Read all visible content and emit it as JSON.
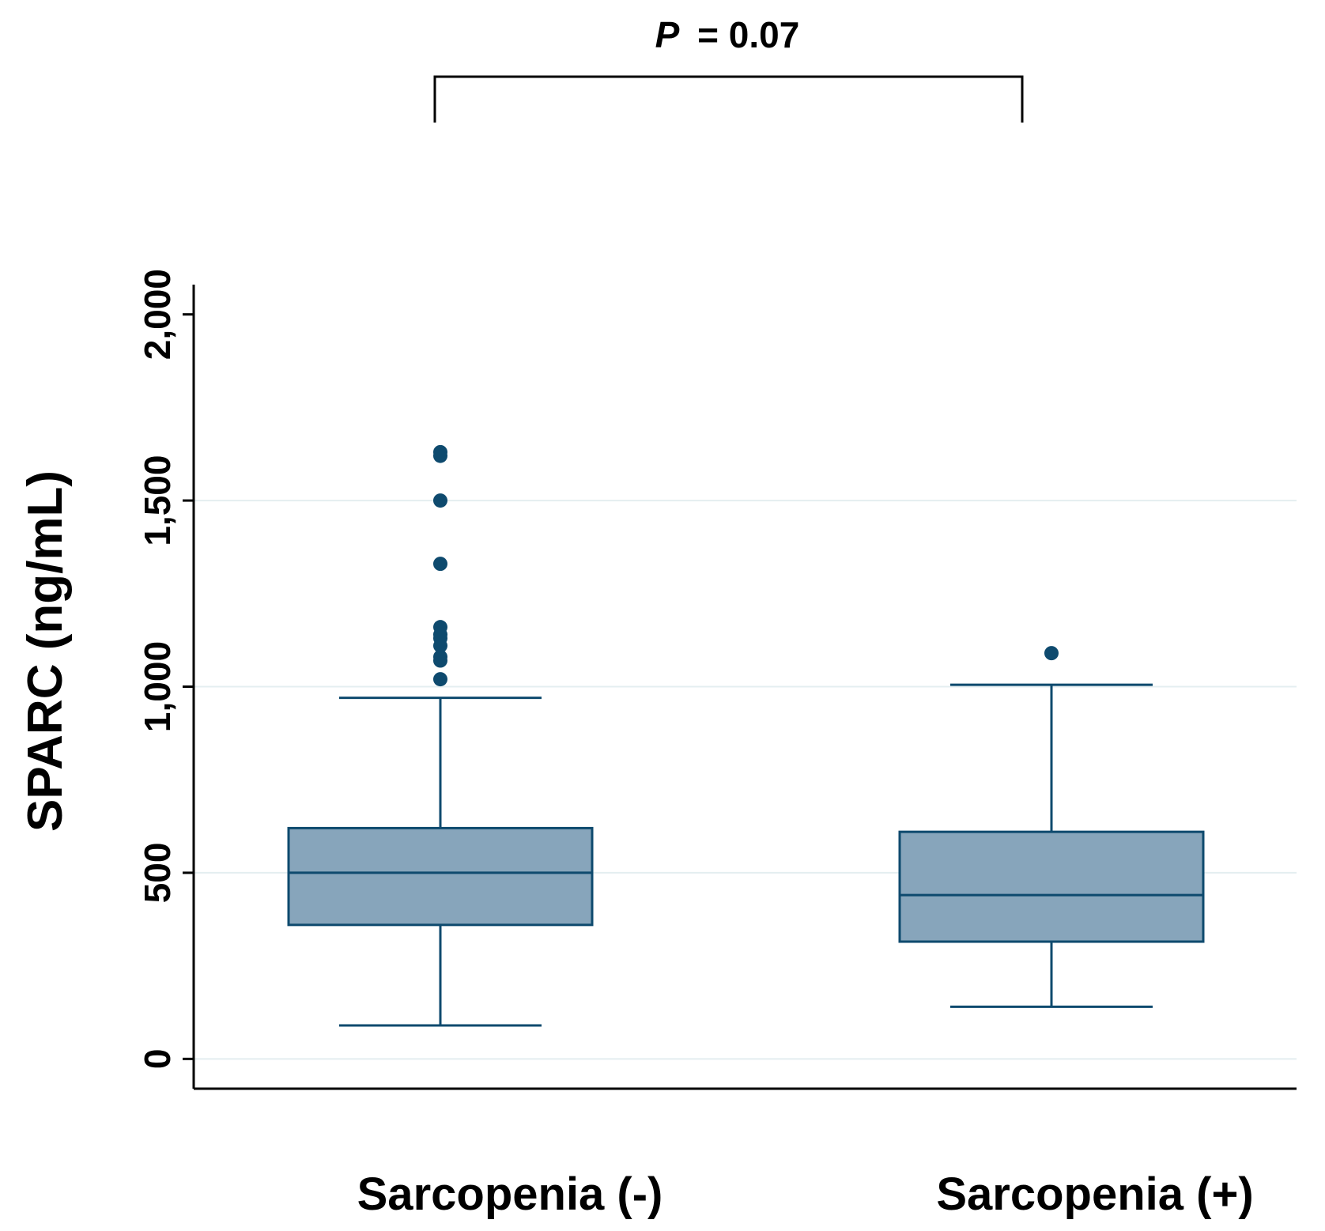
{
  "chart_data": {
    "type": "box",
    "ylabel": "SPARC (ng/mL)",
    "xlabel": "",
    "ylim": [
      -80,
      2080
    ],
    "yticks": [
      0,
      500,
      1000,
      1500,
      2000
    ],
    "ytick_labels": [
      "0",
      "500",
      "1,000",
      "1,500",
      "2,000"
    ],
    "grid": true,
    "categories": [
      "Sarcopenia (-)",
      "Sarcopenia (+)"
    ],
    "boxes": [
      {
        "name": "Sarcopenia (-)",
        "whisker_low": 90,
        "q1": 360,
        "median": 500,
        "q3": 620,
        "whisker_high": 970,
        "outliers": [
          1020,
          1070,
          1080,
          1110,
          1130,
          1140,
          1160,
          1330,
          1500,
          1620,
          1630
        ]
      },
      {
        "name": "Sarcopenia (+)",
        "whisker_low": 140,
        "q1": 315,
        "median": 440,
        "q3": 610,
        "whisker_high": 1005,
        "outliers": [
          1090
        ]
      }
    ],
    "annotation": {
      "p_symbol": "P",
      "p_value_text": "= 0.07",
      "compares": [
        "Sarcopenia (-)",
        "Sarcopenia (+)"
      ]
    },
    "colors": {
      "box_fill": "#87a5bb",
      "box_stroke": "#0e4a6e",
      "outlier": "#0e4a6e",
      "grid": "#e4eef0",
      "axis": "#000000"
    }
  }
}
